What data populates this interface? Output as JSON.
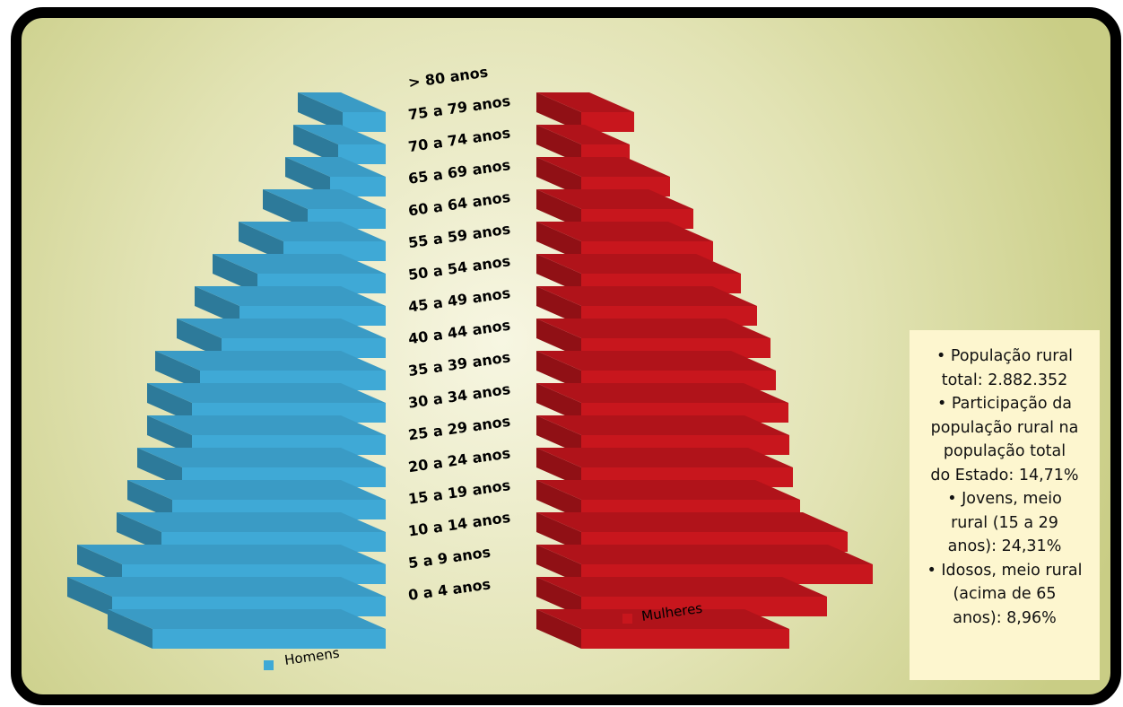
{
  "chart_data": {
    "type": "bar",
    "orientation": "horizontal",
    "categories": [
      "0 a 4 anos",
      "5 a 9 anos",
      "10 a 14 anos",
      "15 a 19 anos",
      "20 a 24 anos",
      "25 a 29 anos",
      "30 a 34 anos",
      "35 a 39 anos",
      "40 a 44 anos",
      "45 a 49 anos",
      "50 a 54 anos",
      "55 a 59 anos",
      "60 a 64 anos",
      "65 a 69 anos",
      "70 a 74 anos",
      "75 a 79 anos",
      "> 80 anos"
    ],
    "series": [
      {
        "name": "Homens",
        "values": [
          260,
          305,
          294,
          250,
          238,
          227,
          216,
          216,
          207,
          183,
          163,
          143,
          114,
          87,
          62,
          53,
          48
        ]
      },
      {
        "name": "Mulheres",
        "values": [
          232,
          274,
          325,
          297,
          244,
          236,
          232,
          231,
          217,
          211,
          196,
          178,
          147,
          125,
          99,
          54,
          59
        ]
      }
    ],
    "legend": "bottom",
    "grid": false,
    "colors": {
      "Homens": "#3fa9d6",
      "Mulheres": "#c8161d"
    }
  },
  "info_lines": [
    "• População rural",
    "total: 2.882.352",
    "• Participação da",
    "população rural na",
    "população total",
    "do Estado: 14,71%",
    "• Jovens, meio",
    "rural (15 a 29",
    "anos): 24,31%",
    "• Idosos, meio rural",
    "(acima de 65",
    "anos): 8,96%"
  ],
  "colors": {
    "frame": "#000000",
    "background_center": "#f6f4dc",
    "background_edge": "#cfd38c",
    "info_box": "#fdf6cf"
  }
}
